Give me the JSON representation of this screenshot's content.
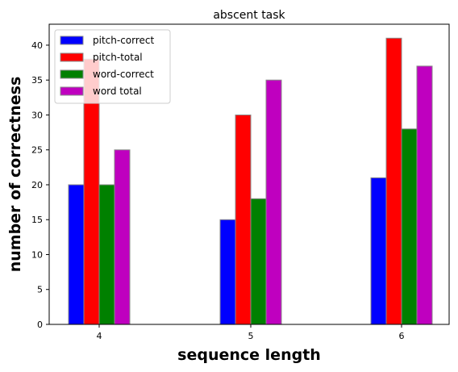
{
  "chart_data": {
    "type": "bar",
    "title": "abscent task",
    "xlabel": "sequence length",
    "ylabel": "number of correctness",
    "categories": [
      "4",
      "5",
      "6"
    ],
    "ylim": [
      0,
      43
    ],
    "yticks": [
      0,
      5,
      10,
      15,
      20,
      25,
      30,
      35,
      40
    ],
    "grid": false,
    "legend_position": "top-left",
    "series": [
      {
        "name": "pitch-correct",
        "color": "#0000ff",
        "values": [
          20,
          15,
          21
        ]
      },
      {
        "name": "pitch-total",
        "color": "#ff0000",
        "values": [
          38,
          30,
          41
        ]
      },
      {
        "name": "word-correct",
        "color": "#008000",
        "values": [
          20,
          18,
          28
        ]
      },
      {
        "name": "word total",
        "color": "#bf00bf",
        "values": [
          25,
          35,
          37
        ]
      }
    ]
  }
}
